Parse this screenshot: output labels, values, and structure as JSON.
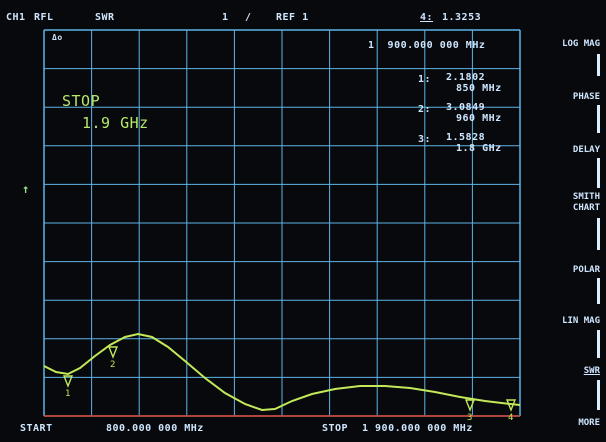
{
  "header": {
    "channel": "CH1",
    "mode": "RFL",
    "format": "SWR",
    "scale_index": "1",
    "scale_sep": "/",
    "reference": "REF 1",
    "marker4_label": "4:",
    "marker4_value": "1.3253"
  },
  "display": {
    "delta_symbol": "Δo",
    "active_marker_freq": "1  900.000 000 MHz",
    "stop_label": "STOP",
    "stop_value": "1.9 GHz",
    "markers": [
      {
        "label": "1:",
        "value": "2.1802",
        "freq": "850 MHz"
      },
      {
        "label": "2:",
        "value": "3.0849",
        "freq": "960 MHz"
      },
      {
        "label": "3:",
        "value": "1.5828",
        "freq": "1.8 GHz"
      }
    ],
    "ref_arrow": "↑"
  },
  "footer": {
    "start_label": "START",
    "start_value": "800.000 000 MHz",
    "stop_label": "STOP",
    "stop_value": "1 900.000 000 MHz"
  },
  "softkeys": [
    {
      "label": "LOG MAG"
    },
    {
      "label": "PHASE"
    },
    {
      "label": "DELAY"
    },
    {
      "label": "SMITH\nCHART"
    },
    {
      "label": "POLAR"
    },
    {
      "label": "LIN MAG"
    },
    {
      "label": "SWR"
    },
    {
      "label": "MORE"
    }
  ],
  "trace_markers": [
    "1",
    "2",
    "3",
    "4"
  ],
  "colors": {
    "grid": "#5fb4e6",
    "trace": "#c3e85a",
    "text": "#cfe6ff",
    "ref_line": "#d63b2a"
  }
}
